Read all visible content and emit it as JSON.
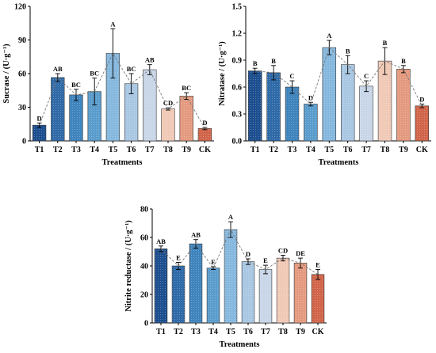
{
  "chart_data": [
    {
      "type": "bar",
      "categories": [
        "T1",
        "T2",
        "T3",
        "T4",
        "T5",
        "T6",
        "T7",
        "T8",
        "T9",
        "CK"
      ],
      "values": [
        14,
        56.5,
        41,
        44,
        78,
        51,
        63.5,
        28.5,
        40,
        11
      ],
      "errors": [
        2,
        3.5,
        5,
        12,
        22,
        9,
        4.5,
        1,
        3,
        1
      ],
      "significance": [
        "D",
        "AB",
        "BC",
        "BC",
        "A",
        "BC",
        "AB",
        "CD",
        "BC",
        "D"
      ],
      "xlabel": "Treatments",
      "ylabel": "Sucrase / (U·g⁻¹)",
      "ylim": [
        0,
        120
      ],
      "yticks": [
        "0",
        "30",
        "60",
        "90",
        "120"
      ],
      "grid": false,
      "trend_line": "dashed"
    },
    {
      "type": "bar",
      "categories": [
        "T1",
        "T2",
        "T3",
        "T4",
        "T5",
        "T6",
        "T7",
        "T8",
        "T9",
        "CK"
      ],
      "values": [
        0.78,
        0.76,
        0.6,
        0.41,
        1.04,
        0.85,
        0.61,
        0.89,
        0.8,
        0.39
      ],
      "errors": [
        0.03,
        0.08,
        0.07,
        0.02,
        0.08,
        0.1,
        0.06,
        0.15,
        0.04,
        0.02
      ],
      "significance": [
        "B",
        "B",
        "C",
        "D",
        "A",
        "B",
        "C",
        "B",
        "B",
        "D"
      ],
      "xlabel": "Treatments",
      "ylabel": "Nitratase / (U·g⁻¹)",
      "ylim": [
        0,
        1.5
      ],
      "yticks": [
        "0.0",
        "0.3",
        "0.6",
        "0.9",
        "1.2",
        "1.5"
      ],
      "grid": false,
      "trend_line": "dashed"
    },
    {
      "type": "bar",
      "categories": [
        "T1",
        "T2",
        "T3",
        "T4",
        "T5",
        "T6",
        "T7",
        "T8",
        "T9",
        "CK"
      ],
      "values": [
        52,
        40,
        55.5,
        38.5,
        65.5,
        43,
        37.5,
        45.5,
        42,
        34
      ],
      "errors": [
        2,
        2.5,
        3,
        1,
        5.5,
        2,
        3,
        2,
        3.5,
        3.5
      ],
      "significance": [
        "AB",
        "E",
        "AB",
        "E",
        "A",
        "D",
        "E",
        "CD",
        "DE",
        "E"
      ],
      "xlabel": "Treatments",
      "ylabel": "Nitrite reductase / (U·g⁻¹)",
      "ylim": [
        0,
        80
      ],
      "yticks": [
        "0",
        "20",
        "40",
        "60",
        "80"
      ],
      "grid": false,
      "trend_line": "dashed"
    }
  ],
  "colors": {
    "bars": [
      "#1d4f8f",
      "#2f6aa8",
      "#3e84bd",
      "#5a9ccc",
      "#86b8de",
      "#a9c7e3",
      "#c8d6e8",
      "#f0c9b6",
      "#e49a7f",
      "#d1654a"
    ],
    "trend_line": "#777777",
    "text": "#000000"
  }
}
